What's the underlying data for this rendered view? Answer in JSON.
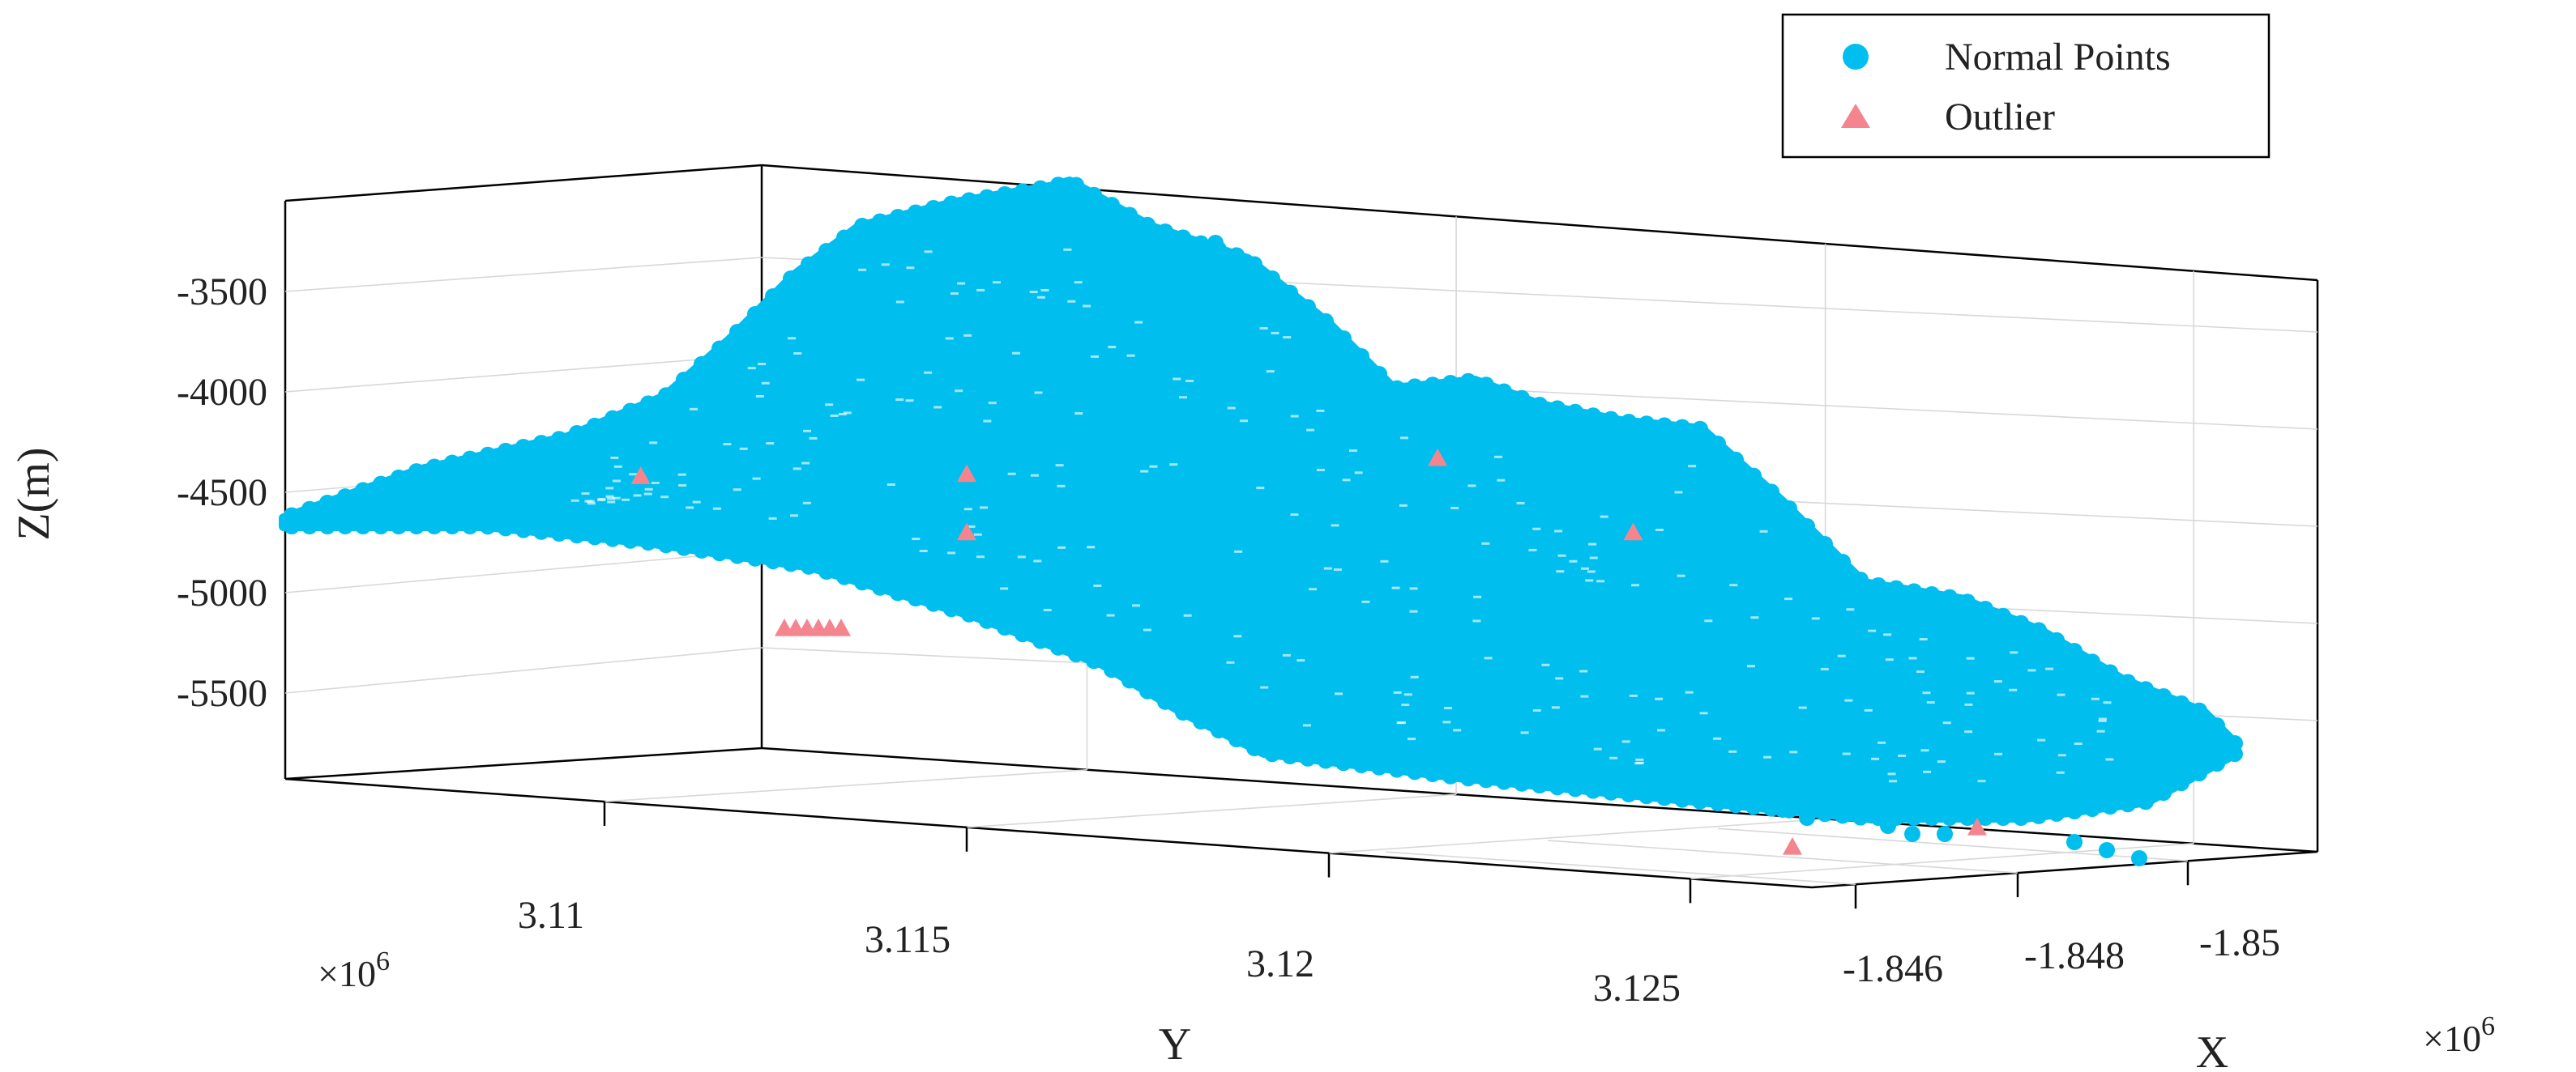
{
  "chart_data": {
    "type": "scatter",
    "title": "",
    "xlabel": "X",
    "ylabel": "Y",
    "zlabel": "Z(m)",
    "x_multiplier": "×10",
    "x_multiplier_exp": "6",
    "y_multiplier": "×10",
    "y_multiplier_exp": "6",
    "z_ticks": [
      "-3500",
      "-4000",
      "-4500",
      "-5000",
      "-5500"
    ],
    "y_ticks": [
      "3.11",
      "3.115",
      "3.12",
      "3.125"
    ],
    "x_ticks": [
      "-1.846",
      "-1.848",
      "-1.85"
    ],
    "legend_position": "top-right",
    "grid": true,
    "series": [
      {
        "name": "Normal Points",
        "marker": "circle",
        "color": "#00BFEF",
        "description_points": "dense terrain surface",
        "z_range": [
          -5800,
          -3100
        ]
      },
      {
        "name": "Outlier",
        "marker": "triangle",
        "color": "#F4858E",
        "points": [
          {
            "y": 3.1105,
            "z": -4420
          },
          {
            "y": 3.115,
            "z": -4410
          },
          {
            "y": 3.115,
            "z": -4700
          },
          {
            "y": 3.1215,
            "z": -4330
          },
          {
            "y": 3.1242,
            "z": -4700
          }
        ]
      }
    ]
  },
  "legend": {
    "items": [
      {
        "label": "Normal Points"
      },
      {
        "label": "Outlier"
      }
    ]
  }
}
